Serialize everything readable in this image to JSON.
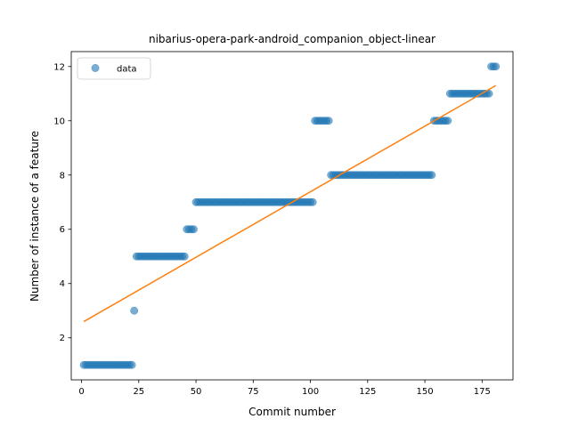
{
  "chart_data": {
    "type": "scatter",
    "title": "nibarius-opera-park-android_companion_object-linear",
    "xlabel": "Commit number",
    "ylabel": "Number of instance of a feature",
    "xlim": [
      -4.5,
      188.5
    ],
    "ylim": [
      0.45,
      12.55
    ],
    "xticks": [
      0,
      25,
      50,
      75,
      100,
      125,
      150,
      175
    ],
    "yticks": [
      2,
      4,
      6,
      8,
      10,
      12
    ],
    "grid": false,
    "legend_position": "top-left",
    "series": [
      {
        "name": "data",
        "kind": "scatter",
        "color": "#1f77b4",
        "segments": [
          {
            "x_start": 1,
            "x_end": 22,
            "y": 1
          },
          {
            "x_start": 23,
            "x_end": 23,
            "y": 3
          },
          {
            "x_start": 24,
            "x_end": 45,
            "y": 5
          },
          {
            "x_start": 46,
            "x_end": 49,
            "y": 6
          },
          {
            "x_start": 50,
            "x_end": 101,
            "y": 7
          },
          {
            "x_start": 102,
            "x_end": 108,
            "y": 10
          },
          {
            "x_start": 109,
            "x_end": 153,
            "y": 8
          },
          {
            "x_start": 154,
            "x_end": 160,
            "y": 10
          },
          {
            "x_start": 161,
            "x_end": 178,
            "y": 11
          },
          {
            "x_start": 179,
            "x_end": 181,
            "y": 12
          }
        ]
      },
      {
        "kind": "line",
        "color": "#ff7f0e",
        "x": [
          1,
          181
        ],
        "y": [
          2.6,
          11.3
        ]
      }
    ]
  }
}
